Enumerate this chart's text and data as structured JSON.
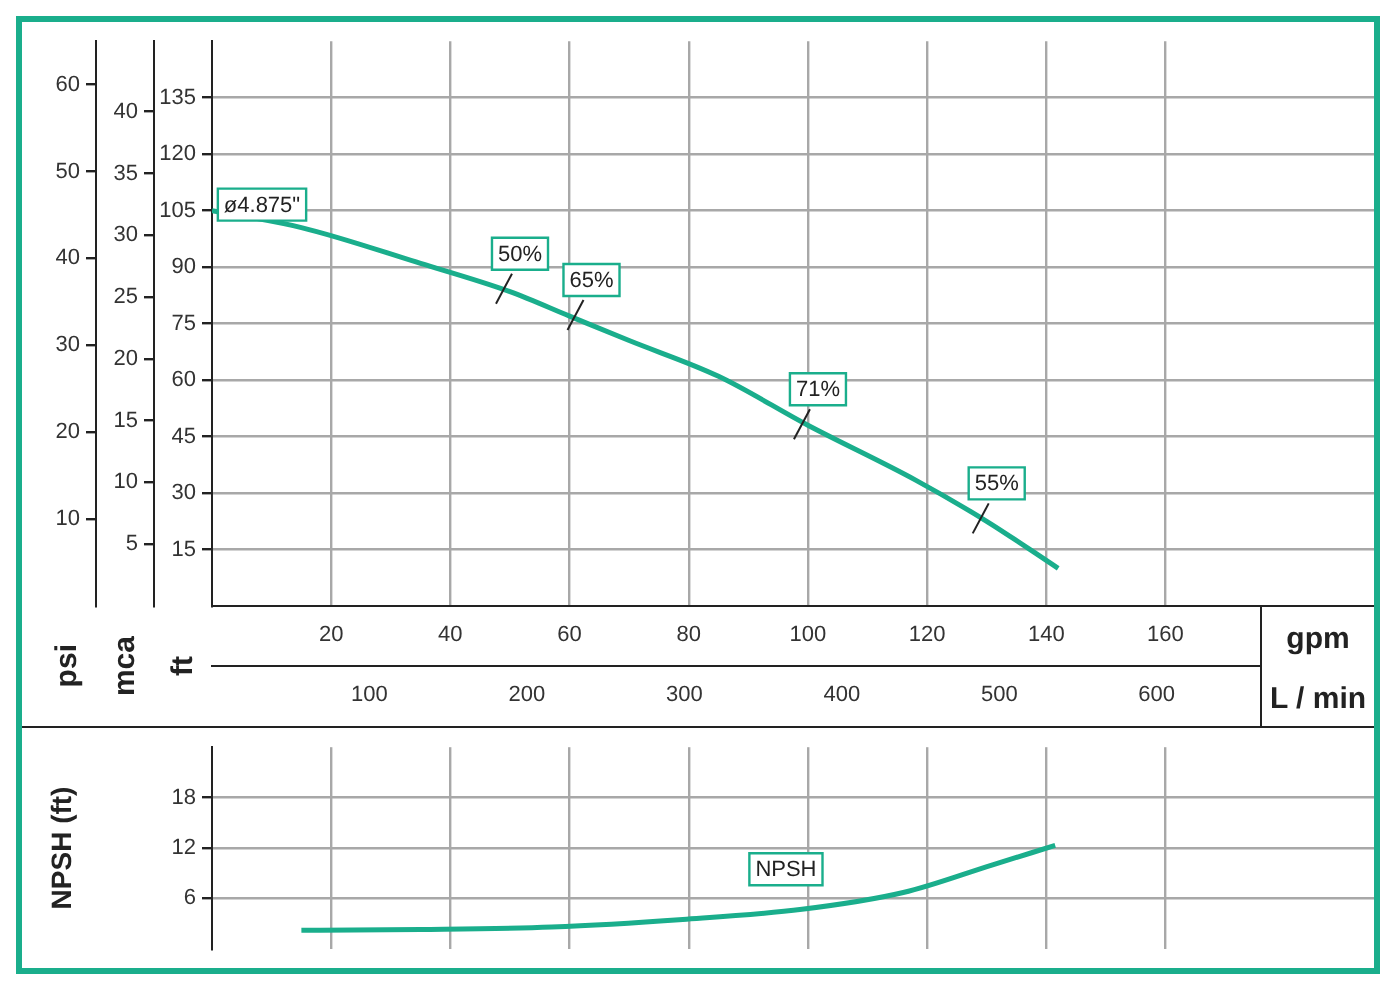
{
  "chart_data": [
    {
      "type": "line",
      "xlabel": "gpm",
      "x2label": "L / min",
      "ylabel": "ft",
      "y2label": "psi",
      "y3label": "mca",
      "xlim": [
        0,
        195
      ],
      "xticks": [
        20,
        40,
        60,
        80,
        100,
        120,
        140,
        160
      ],
      "x2lim": [
        0,
        738
      ],
      "x2ticks": [
        100,
        200,
        300,
        400,
        500,
        600
      ],
      "ylim": [
        0,
        150
      ],
      "yticks": [
        15,
        30,
        45,
        60,
        75,
        90,
        105,
        120,
        135
      ],
      "y2lim": [
        0,
        65
      ],
      "y2ticks": [
        10,
        20,
        30,
        40,
        50,
        60
      ],
      "y3lim": [
        0,
        45.7
      ],
      "y3ticks": [
        5,
        10,
        15,
        20,
        25,
        30,
        35,
        40
      ],
      "grid": true,
      "legend": false,
      "marker": "none",
      "series": [
        {
          "name": "ø4.875\"",
          "color": "#1aae8c",
          "x": [
            0,
            15,
            35,
            50,
            60,
            70,
            85,
            100,
            118,
            130,
            142
          ],
          "values": [
            105,
            100.5,
            91,
            83.5,
            77,
            70.5,
            61,
            48,
            33.5,
            22.5,
            10
          ]
        }
      ],
      "annotations": [
        {
          "text": "50%",
          "x": 49,
          "y": 84
        },
        {
          "text": "65%",
          "x": 61,
          "y": 77
        },
        {
          "text": "71%",
          "x": 99,
          "y": 48
        },
        {
          "text": "55%",
          "x": 129,
          "y": 23
        }
      ]
    },
    {
      "type": "line",
      "ylabel": "NPSH (ft)",
      "xlim": [
        0,
        195
      ],
      "xticks": [
        20,
        40,
        60,
        80,
        100,
        120,
        140,
        160
      ],
      "tick_labels": "y",
      "ylim": [
        0,
        24
      ],
      "yticks": [
        6,
        12,
        18
      ],
      "grid": true,
      "legend": false,
      "marker": "none",
      "series": [
        {
          "name": "NPSH",
          "color": "#1aae8c",
          "x": [
            15,
            35,
            57,
            79,
            99,
            116,
            131,
            141.5
          ],
          "values": [
            2.2,
            2.3,
            2.6,
            3.5,
            4.7,
            6.7,
            10,
            12.3
          ]
        }
      ]
    }
  ]
}
